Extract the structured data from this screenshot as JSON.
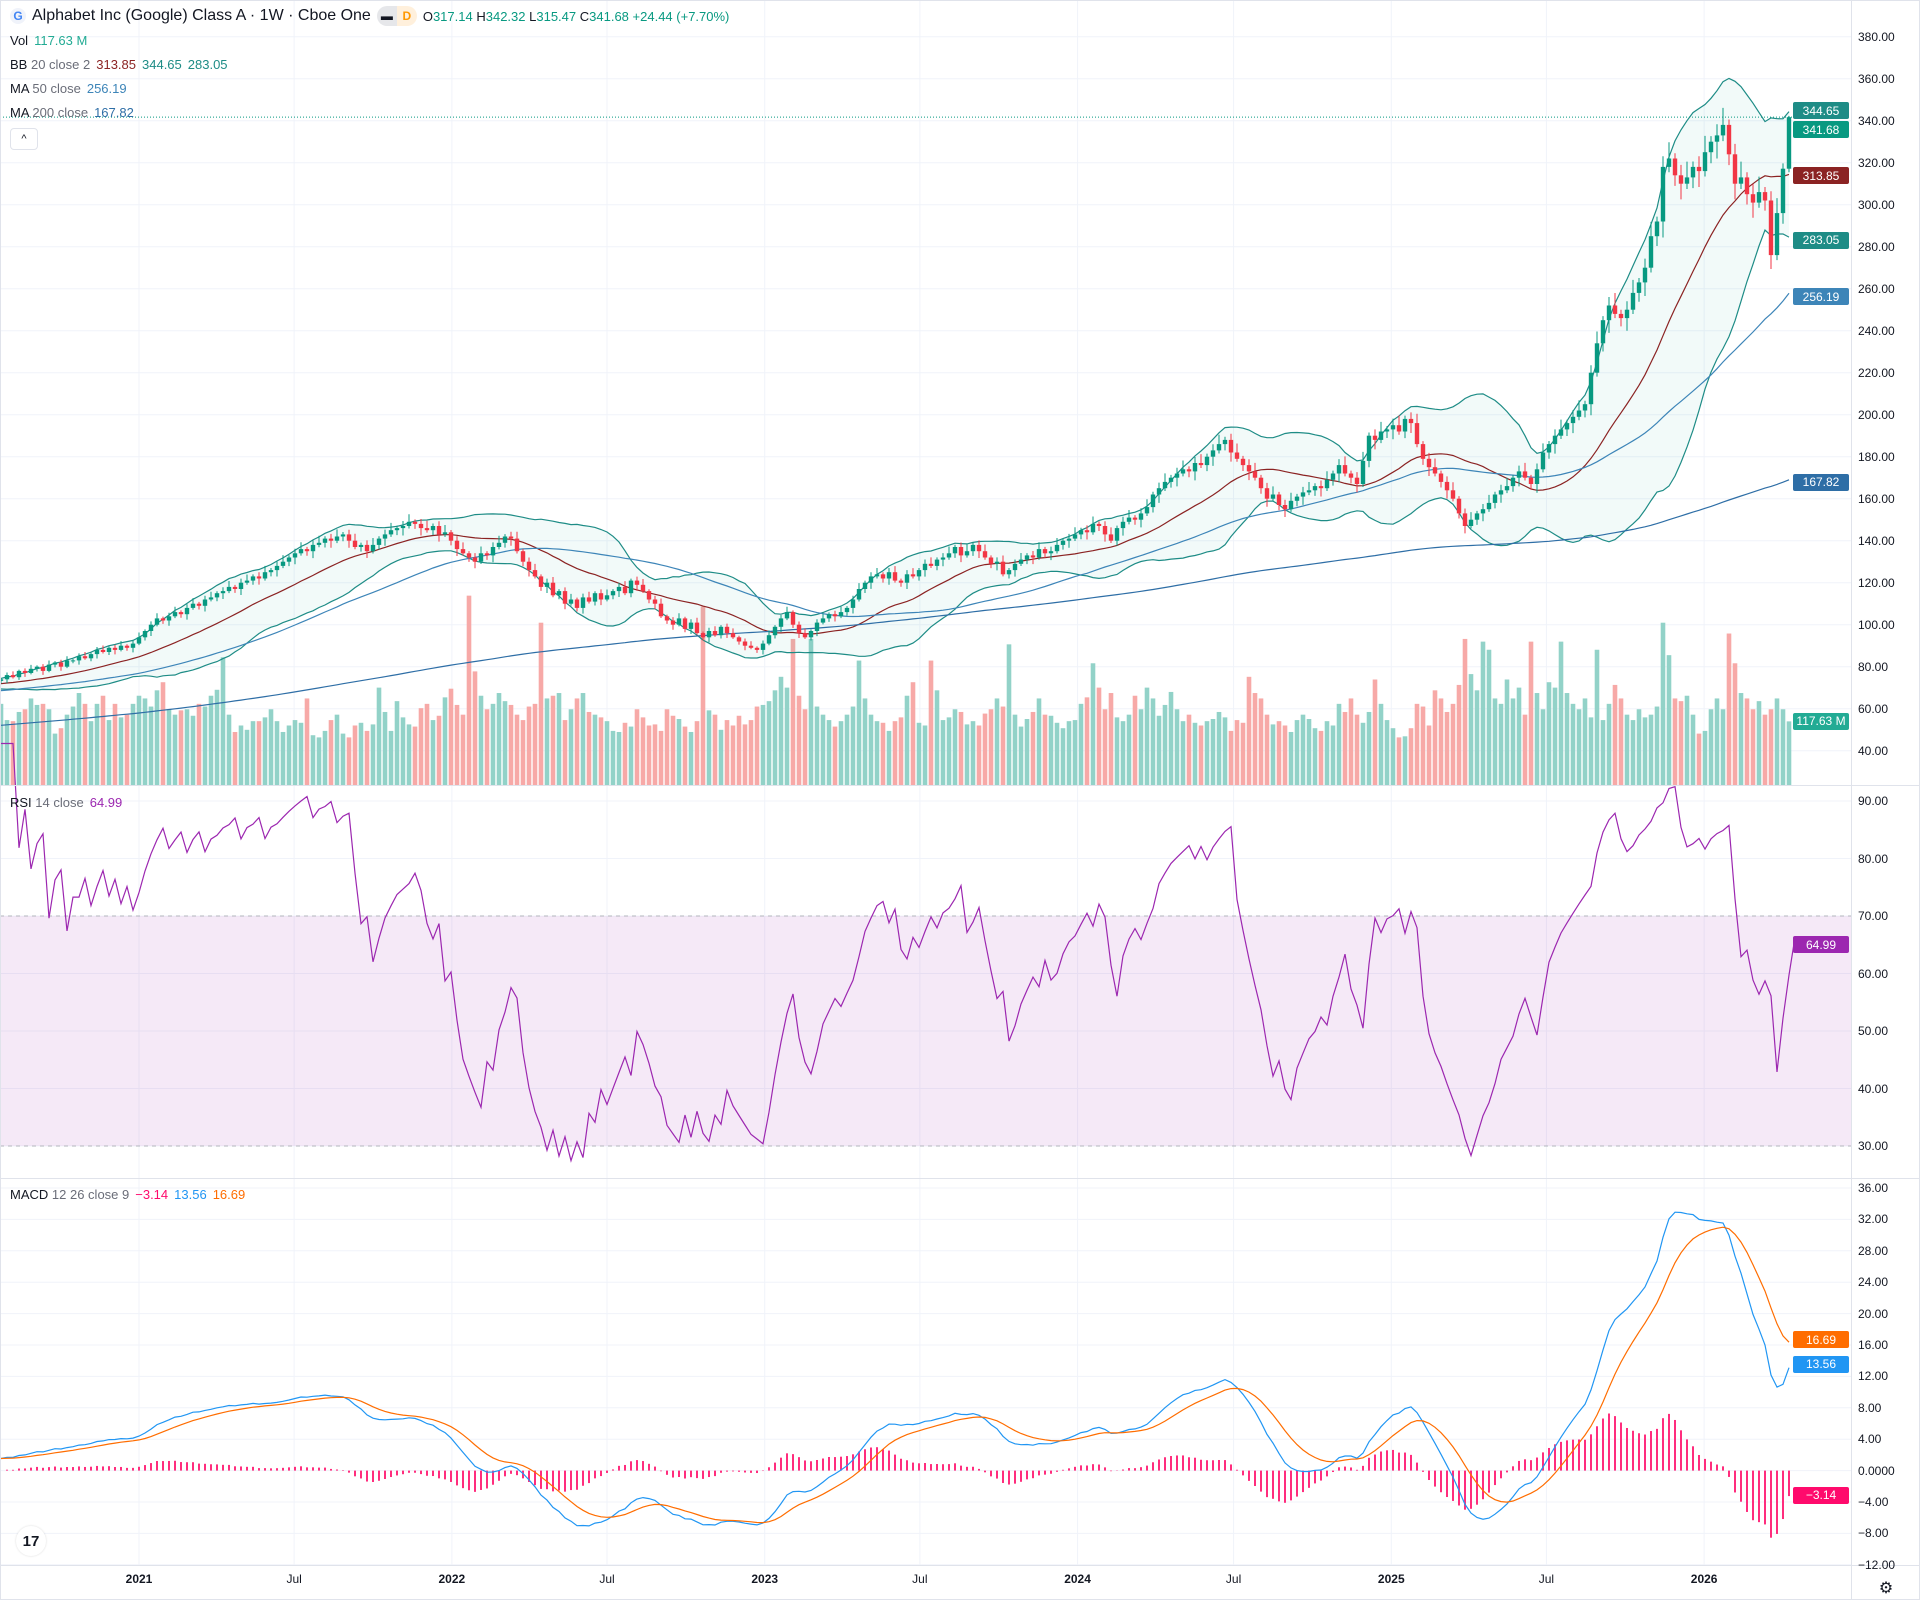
{
  "header": {
    "logo_letter": "G",
    "title": "Alphabet Inc (Google) Class A · 1W · Cboe One",
    "badge_left": "▬",
    "badge_right": "D",
    "o_label": "O",
    "o_value": "317.14",
    "h_label": "H",
    "h_value": "342.32",
    "l_label": "L",
    "l_value": "315.47",
    "c_label": "C",
    "c_value": "341.68",
    "change": "+24.44 (+7.70%)"
  },
  "legends": {
    "vol": {
      "name": "Vol",
      "value": "117.63 M"
    },
    "bb": {
      "name": "BB",
      "params": "20 close 2",
      "basis": "313.85",
      "upper": "344.65",
      "lower": "283.05"
    },
    "ma50": {
      "name": "MA",
      "params": "50 close",
      "value": "256.19"
    },
    "ma200": {
      "name": "MA",
      "params": "200 close",
      "value": "167.82"
    },
    "rsi": {
      "name": "RSI",
      "params": "14 close",
      "value": "64.99"
    },
    "macd": {
      "name": "MACD",
      "params": "12 26 close 9",
      "hist": "−3.14",
      "macd": "13.56",
      "signal": "16.69"
    }
  },
  "price_labels": [
    {
      "text": "344.65",
      "value": 344.65,
      "color": "#1e8c86"
    },
    {
      "text": "341.68",
      "value": 341.68,
      "color": "#089981"
    },
    {
      "text": "313.85",
      "value": 313.85,
      "color": "#8b2323"
    },
    {
      "text": "283.05",
      "value": 283.05,
      "color": "#1e8c86"
    },
    {
      "text": "256.19",
      "value": 256.19,
      "color": "#3d85b8"
    },
    {
      "text": "167.82",
      "value": 167.82,
      "color": "#2e6ea6"
    }
  ],
  "volume_label": {
    "text": "117.63 M",
    "value": 117.63,
    "color": "#22ab94"
  },
  "rsi_label": {
    "text": "64.99",
    "value": 64.99,
    "color": "#9c27b0"
  },
  "macd_labels": [
    {
      "text": "16.69",
      "value": 16.69,
      "color": "#ff6d00"
    },
    {
      "text": "13.56",
      "value": 13.56,
      "color": "#2196f3"
    },
    {
      "text": "−3.14",
      "value": -3.14,
      "color": "#ff0a6c"
    }
  ],
  "colors": {
    "up": "#089981",
    "down": "#f23645",
    "bb_band": "#1e8c86",
    "bb_basis": "#8b2323",
    "ma50": "#3d85b8",
    "ma200": "#2e6ea6",
    "rsi": "#9c27b0",
    "macd": "#2196f3",
    "signal": "#ff6d00",
    "hist": "#ff2d7d"
  },
  "icons": {
    "collapse": "chevron-up-icon",
    "logo": "tradingview-logo",
    "settings": "settings-icon"
  },
  "collapse_glyph": "^",
  "tv_logo_text": "17",
  "gear_glyph": "⚙",
  "chart_data": {
    "type": "candlestick",
    "interval": "1W",
    "price_axis": {
      "range": [
        40,
        380
      ],
      "ticks": [
        "380.00",
        "360.00",
        "340.00",
        "320.00",
        "300.00",
        "280.00",
        "260.00",
        "240.00",
        "220.00",
        "200.00",
        "180.00",
        "160.00",
        "140.00",
        "120.00",
        "100.00",
        "80.00",
        "60.00",
        "40.00"
      ]
    },
    "rsi_axis": {
      "range": [
        30,
        90
      ],
      "ticks": [
        "90.00",
        "80.00",
        "70.00",
        "60.00",
        "50.00",
        "40.00",
        "30.00"
      ],
      "band": [
        30,
        70
      ]
    },
    "macd_axis": {
      "range": [
        -12,
        36
      ],
      "ticks": [
        "36.00",
        "32.00",
        "28.00",
        "24.00",
        "20.00",
        "16.00",
        "12.00",
        "8.00",
        "4.00",
        "0.0000",
        "−4.00",
        "−8.00",
        "−12.00"
      ]
    },
    "time_labels": [
      {
        "label": "2021",
        "date": "2021-01-01"
      },
      {
        "label": "Jul",
        "date": "2021-07-01"
      },
      {
        "label": "2022",
        "date": "2022-01-01"
      },
      {
        "label": "Jul",
        "date": "2022-07-01"
      },
      {
        "label": "2023",
        "date": "2023-01-01"
      },
      {
        "label": "Jul",
        "date": "2023-07-01"
      },
      {
        "label": "2024",
        "date": "2024-01-01"
      },
      {
        "label": "Jul",
        "date": "2024-07-01"
      },
      {
        "label": "2025",
        "date": "2025-01-01"
      },
      {
        "label": "Jul",
        "date": "2025-07-01"
      },
      {
        "label": "2026",
        "date": "2026-01-01"
      }
    ],
    "last_bar": {
      "open": 317.14,
      "high": 342.32,
      "low": 315.47,
      "close": 341.68,
      "volume_m": 117.63
    },
    "close": [
      74,
      76,
      75,
      78,
      77,
      79,
      80,
      78,
      81,
      82,
      80,
      83,
      83,
      85,
      84,
      86,
      88,
      87,
      89,
      88,
      90,
      89,
      91,
      94,
      97,
      100,
      103,
      102,
      104,
      106,
      105,
      108,
      110,
      109,
      112,
      113,
      115,
      116,
      118,
      117,
      120,
      121,
      123,
      122,
      125,
      126,
      128,
      130,
      132,
      134,
      136,
      135,
      138,
      139,
      141,
      140,
      142,
      143,
      140,
      137,
      138,
      135,
      138,
      141,
      143,
      145,
      146,
      147,
      149,
      148,
      146,
      145,
      147,
      143,
      144,
      140,
      136,
      134,
      132,
      130,
      134,
      133,
      137,
      139,
      142,
      141,
      135,
      130,
      126,
      123,
      118,
      120,
      114,
      116,
      110,
      112,
      108,
      113,
      111,
      115,
      112,
      114,
      116,
      118,
      115,
      121,
      119,
      116,
      112,
      110,
      104,
      102,
      100,
      103,
      98,
      101,
      96,
      94,
      97,
      95,
      99,
      96,
      94,
      92,
      90,
      89,
      88,
      91,
      95,
      99,
      103,
      106,
      100,
      96,
      94,
      97,
      101,
      103,
      105,
      104,
      106,
      108,
      112,
      117,
      120,
      123,
      124,
      122,
      125,
      121,
      120,
      124,
      123,
      126,
      129,
      128,
      131,
      132,
      134,
      137,
      133,
      135,
      138,
      135,
      132,
      129,
      130,
      124,
      126,
      129,
      131,
      133,
      132,
      136,
      134,
      135,
      138,
      140,
      141,
      143,
      145,
      144,
      148,
      147,
      143,
      140,
      146,
      149,
      151,
      150,
      153,
      156,
      162,
      165,
      168,
      170,
      172,
      174,
      173,
      177,
      176,
      180,
      183,
      186,
      188,
      182,
      179,
      176,
      173,
      170,
      165,
      160,
      162,
      157,
      155,
      159,
      161,
      163,
      164,
      166,
      165,
      169,
      172,
      176,
      172,
      170,
      167,
      178,
      190,
      188,
      192,
      193,
      195,
      192,
      198,
      196,
      186,
      179,
      175,
      172,
      168,
      164,
      160,
      153,
      147,
      150,
      153,
      155,
      158,
      162,
      164,
      166,
      170,
      173,
      170,
      167,
      174,
      182,
      186,
      190,
      193,
      196,
      199,
      202,
      205,
      220,
      234,
      245,
      252,
      248,
      246,
      250,
      258,
      263,
      270,
      285,
      292,
      318,
      322,
      314,
      310,
      313,
      318,
      316,
      325,
      330,
      333,
      338,
      324,
      310,
      313,
      305,
      301,
      306,
      302,
      276,
      296,
      317.14,
      341.68
    ],
    "volume_m": [
      150,
      120,
      118,
      135,
      140,
      160,
      148,
      150,
      140,
      95,
      105,
      130,
      145,
      170,
      150,
      118,
      150,
      165,
      120,
      150,
      125,
      130,
      150,
      165,
      160,
      145,
      175,
      190,
      140,
      130,
      138,
      140,
      128,
      150,
      145,
      165,
      176,
      236,
      130,
      98,
      110,
      102,
      118,
      118,
      125,
      140,
      118,
      98,
      110,
      120,
      115,
      160,
      92,
      88,
      100,
      120,
      130,
      95,
      88,
      110,
      115,
      100,
      112,
      180,
      135,
      100,
      155,
      125,
      112,
      108,
      142,
      150,
      120,
      128,
      162,
      178,
      148,
      130,
      350,
      210,
      165,
      140,
      150,
      170,
      155,
      148,
      130,
      120,
      145,
      150,
      300,
      160,
      165,
      170,
      120,
      140,
      160,
      170,
      135,
      130,
      125,
      118,
      100,
      98,
      115,
      108,
      140,
      125,
      110,
      112,
      100,
      140,
      128,
      122,
      108,
      98,
      118,
      330,
      138,
      130,
      102,
      120,
      110,
      128,
      112,
      120,
      145,
      148,
      155,
      175,
      200,
      180,
      270,
      165,
      140,
      270,
      145,
      130,
      120,
      108,
      118,
      130,
      145,
      230,
      160,
      130,
      118,
      115,
      100,
      118,
      125,
      165,
      190,
      115,
      110,
      230,
      175,
      120,
      125,
      140,
      135,
      112,
      118,
      110,
      132,
      140,
      160,
      145,
      260,
      130,
      108,
      122,
      135,
      160,
      130,
      128,
      115,
      105,
      118,
      120,
      150,
      162,
      225,
      180,
      140,
      170,
      125,
      118,
      130,
      165,
      140,
      180,
      160,
      128,
      148,
      172,
      140,
      118,
      130,
      115,
      110,
      118,
      122,
      135,
      125,
      100,
      120,
      115,
      200,
      170,
      160,
      130,
      112,
      118,
      110,
      98,
      120,
      130,
      122,
      105,
      100,
      118,
      110,
      150,
      135,
      160,
      130,
      115,
      135,
      195,
      150,
      120,
      105,
      88,
      90,
      105,
      150,
      145,
      110,
      175,
      160,
      135,
      150,
      185,
      270,
      205,
      175,
      265,
      250,
      160,
      150,
      195,
      160,
      180,
      130,
      265,
      170,
      140,
      190,
      180,
      265,
      170,
      150,
      140,
      160,
      125,
      250,
      120,
      150,
      185,
      160,
      130,
      120,
      140,
      125,
      130,
      145,
      300,
      240,
      160,
      155,
      165,
      130,
      95,
      100,
      140,
      160,
      140,
      280,
      225,
      170,
      160,
      140,
      155,
      130,
      140,
      160,
      140,
      117.63
    ]
  }
}
